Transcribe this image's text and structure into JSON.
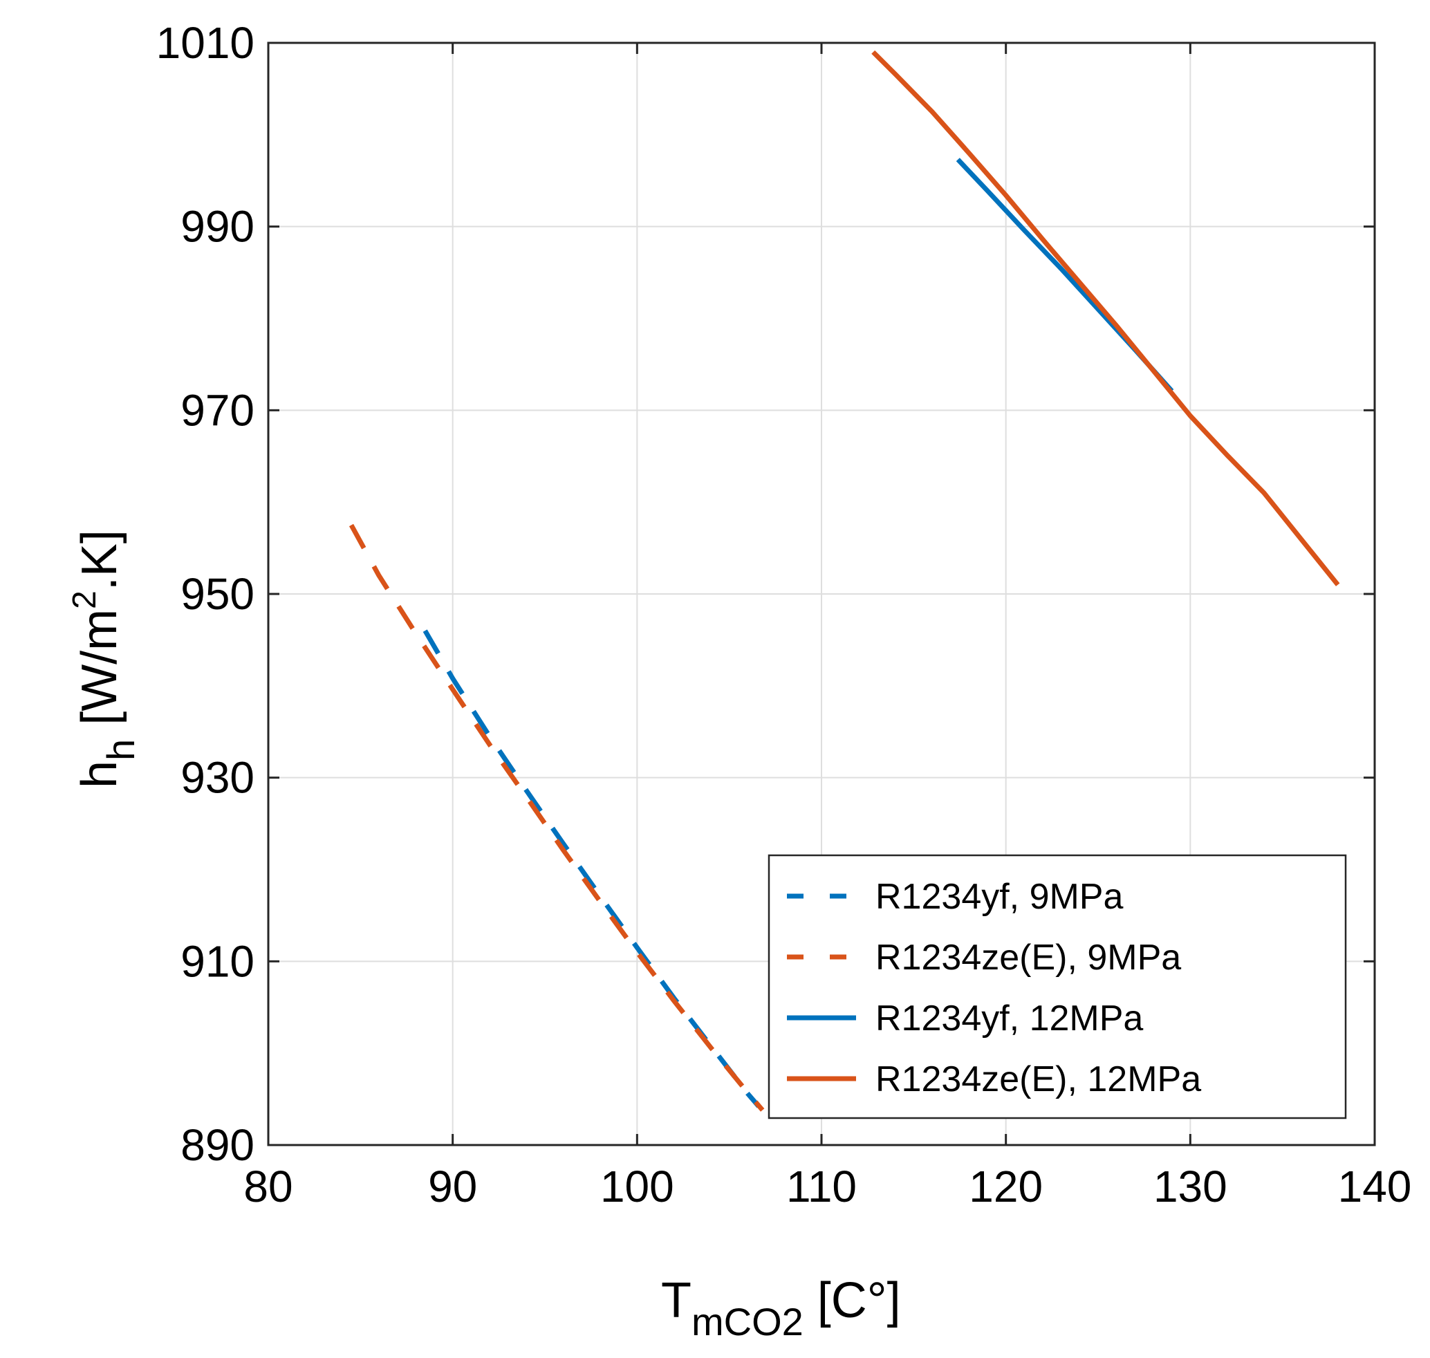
{
  "chart_data": {
    "type": "line",
    "xlabel": {
      "main": "T",
      "sub": "mCO2",
      "unit": " [C°]"
    },
    "ylabel": {
      "main": "h",
      "sub": "h",
      "pre_sup": " [W/m",
      "sup": "2",
      "post_sup": ".K]"
    },
    "xlim": [
      80,
      140
    ],
    "ylim": [
      890,
      1010
    ],
    "xticks": [
      "80",
      "90",
      "100",
      "110",
      "120",
      "130",
      "140"
    ],
    "yticks": [
      "890",
      "910",
      "930",
      "950",
      "970",
      "990",
      "1010"
    ],
    "grid": true,
    "legend_position": "bottom-right",
    "series": [
      {
        "name": "R1234yf, 9MPa",
        "color": "#0072BD",
        "style": "dashed",
        "x": [
          88.5,
          90.0,
          92.0,
          94.0,
          96.0,
          98.0,
          100.0,
          102.0,
          104.0,
          106.0,
          106.6
        ],
        "y": [
          946.0,
          940.8,
          934.5,
          928.6,
          922.8,
          917.1,
          911.5,
          906.0,
          900.8,
          895.6,
          894.2
        ]
      },
      {
        "name": "R1234ze(E), 9MPa",
        "color": "#D95319",
        "style": "dashed",
        "x": [
          84.5,
          86.0,
          88.0,
          90.0,
          92.0,
          94.0,
          96.0,
          98.0,
          100.0,
          102.0,
          104.0,
          106.0,
          106.8
        ],
        "y": [
          957.5,
          952.0,
          945.7,
          939.6,
          933.6,
          927.9,
          922.1,
          916.5,
          911.0,
          905.7,
          900.6,
          895.7,
          893.8
        ]
      },
      {
        "name": "R1234yf, 12MPa",
        "color": "#0072BD",
        "style": "solid",
        "x": [
          117.4,
          119.0,
          121.0,
          123.0,
          125.0,
          127.0,
          129.0
        ],
        "y": [
          997.3,
          993.9,
          989.6,
          985.4,
          981.0,
          976.6,
          972.1
        ]
      },
      {
        "name": "R1234ze(E), 12MPa",
        "color": "#D95319",
        "style": "solid",
        "x": [
          112.8,
          114.0,
          116.0,
          118.0,
          120.0,
          122.0,
          124.0,
          126.0,
          128.0,
          130.0,
          132.0,
          134.0,
          136.0,
          138.0
        ],
        "y": [
          1009.0,
          1006.6,
          1002.5,
          998.0,
          993.4,
          988.6,
          983.9,
          979.2,
          974.3,
          969.4,
          965.1,
          961.0,
          956.0,
          951.0
        ]
      }
    ]
  }
}
